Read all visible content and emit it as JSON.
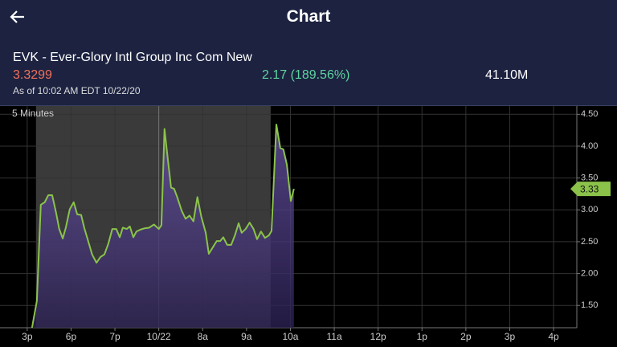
{
  "header": {
    "title": "Chart"
  },
  "stock": {
    "name": "EVK - Ever-Glory Intl Group Inc Com New",
    "price": "3.3299",
    "change": "2.17 (189.56%)",
    "volume": "41.10M",
    "as_of": "As of 10:02 AM EDT 10/22/20"
  },
  "chart_data": {
    "type": "line",
    "subtitle": "5 Minutes",
    "x": [
      0.11,
      0.22,
      0.31,
      0.4,
      0.48,
      0.57,
      0.66,
      0.73,
      0.81,
      0.88,
      0.97,
      1.06,
      1.14,
      1.23,
      1.3,
      1.39,
      1.48,
      1.58,
      1.67,
      1.76,
      1.85,
      1.94,
      2.03,
      2.11,
      2.18,
      2.27,
      2.34,
      2.42,
      2.49,
      2.58,
      2.67,
      2.78,
      2.89,
      3.0,
      3.06,
      3.13,
      3.21,
      3.28,
      3.35,
      3.42,
      3.52,
      3.61,
      3.7,
      3.79,
      3.88,
      3.97,
      4.07,
      4.14,
      4.23,
      4.32,
      4.4,
      4.47,
      4.56,
      4.65,
      4.74,
      4.82,
      4.89,
      4.98,
      5.07,
      5.16,
      5.24,
      5.33,
      5.42,
      5.51,
      5.57,
      5.68,
      5.77,
      5.84,
      5.92,
      6.01,
      6.08
    ],
    "series": [
      {
        "color": "#8bc34a",
        "values": [
          1.15,
          1.57,
          3.08,
          3.12,
          3.23,
          3.23,
          2.95,
          2.7,
          2.55,
          2.72,
          3.01,
          3.12,
          2.93,
          2.92,
          2.72,
          2.51,
          2.3,
          2.17,
          2.26,
          2.3,
          2.47,
          2.7,
          2.7,
          2.57,
          2.72,
          2.7,
          2.74,
          2.57,
          2.66,
          2.69,
          2.71,
          2.72,
          2.77,
          2.7,
          2.76,
          4.27,
          3.77,
          3.35,
          3.33,
          3.2,
          2.99,
          2.86,
          2.91,
          2.82,
          3.2,
          2.89,
          2.64,
          2.31,
          2.41,
          2.51,
          2.51,
          2.57,
          2.45,
          2.45,
          2.61,
          2.79,
          2.64,
          2.7,
          2.8,
          2.7,
          2.54,
          2.66,
          2.56,
          2.6,
          2.67,
          4.34,
          3.97,
          3.95,
          3.71,
          3.14,
          3.33
        ]
      }
    ],
    "xlim": [
      -0.62,
      12.53
    ],
    "xticks": [
      {
        "value": 0,
        "label": "3p"
      },
      {
        "value": 1,
        "label": "6p"
      },
      {
        "value": 2,
        "label": "7p"
      },
      {
        "value": 3,
        "label": "10/22"
      },
      {
        "value": 4,
        "label": "8a"
      },
      {
        "value": 5,
        "label": "9a"
      },
      {
        "value": 6,
        "label": "10a"
      },
      {
        "value": 7,
        "label": "11a"
      },
      {
        "value": 8,
        "label": "12p"
      },
      {
        "value": 9,
        "label": "1p"
      },
      {
        "value": 10,
        "label": "2p"
      },
      {
        "value": 11,
        "label": "3p"
      },
      {
        "value": 12,
        "label": "4p"
      }
    ],
    "ylim": [
      1.15,
      4.63
    ],
    "yticks": [
      {
        "value": 1.5,
        "label": "1.50"
      },
      {
        "value": 2,
        "label": "2.00"
      },
      {
        "value": 2.5,
        "label": "2.50"
      },
      {
        "value": 3,
        "label": "3.00"
      },
      {
        "value": 3.5,
        "label": "3.50"
      },
      {
        "value": 4,
        "label": "4.00"
      },
      {
        "value": 4.5,
        "label": "4.50"
      }
    ],
    "grid": true,
    "shaded_range": [
      0.2,
      5.55
    ],
    "day_divider": 3,
    "price_tag": 3.33
  }
}
